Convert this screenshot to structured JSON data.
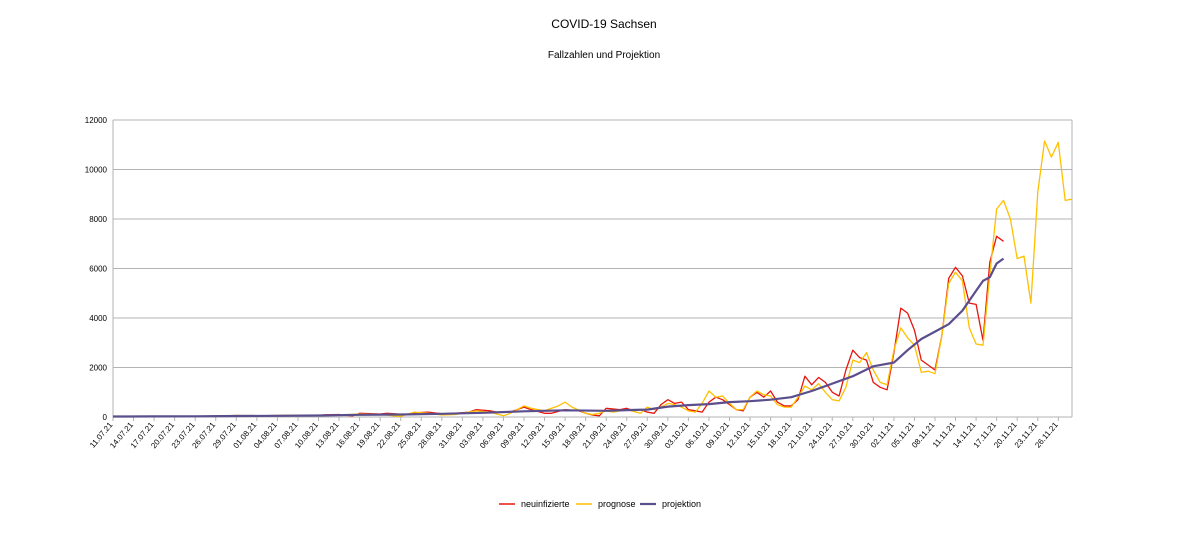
{
  "chart_data": {
    "type": "line",
    "title": "COVID-19 Sachsen",
    "subtitle": "Fallzahlen und Projektion",
    "xlabel": "",
    "ylabel": "",
    "ylim": [
      0,
      12000
    ],
    "yticks": [
      0,
      2000,
      4000,
      6000,
      8000,
      10000,
      12000
    ],
    "grid": true,
    "legend_position": "bottom",
    "x_start": "11.07.21",
    "x_end": "28.11.21",
    "xtick_labels": [
      "11.07.21",
      "14.07.21",
      "17.07.21",
      "20.07.21",
      "23.07.21",
      "26.07.21",
      "29.07.21",
      "01.08.21",
      "04.08.21",
      "07.08.21",
      "10.08.21",
      "13.08.21",
      "16.08.21",
      "19.08.21",
      "22.08.21",
      "25.08.21",
      "28.08.21",
      "31.08.21",
      "03.09.21",
      "06.09.21",
      "09.09.21",
      "12.09.21",
      "15.09.21",
      "18.09.21",
      "21.09.21",
      "24.09.21",
      "27.09.21",
      "30.09.21",
      "03.10.21",
      "06.10.21",
      "09.10.21",
      "12.10.21",
      "15.10.21",
      "18.10.21",
      "21.10.21",
      "24.10.21",
      "27.10.21",
      "30.10.21",
      "02.11.21",
      "05.11.21",
      "08.11.21",
      "11.11.21",
      "14.11.21",
      "17.11.21",
      "20.11.21",
      "23.11.21",
      "26.11.21"
    ],
    "series": [
      {
        "name": "neuinfizierte",
        "color": "#e8150d",
        "points": [
          [
            "11.07.21",
            20
          ],
          [
            "14.07.21",
            25
          ],
          [
            "17.07.21",
            30
          ],
          [
            "20.07.21",
            35
          ],
          [
            "23.07.21",
            30
          ],
          [
            "26.07.21",
            40
          ],
          [
            "29.07.21",
            60
          ],
          [
            "01.08.21",
            50
          ],
          [
            "04.08.21",
            60
          ],
          [
            "07.08.21",
            70
          ],
          [
            "10.08.21",
            60
          ],
          [
            "11.08.21",
            90
          ],
          [
            "13.08.21",
            100
          ],
          [
            "14.08.21",
            70
          ],
          [
            "15.08.21",
            50
          ],
          [
            "16.08.21",
            150
          ],
          [
            "18.08.21",
            130
          ],
          [
            "19.08.21",
            120
          ],
          [
            "20.08.21",
            150
          ],
          [
            "22.08.21",
            110
          ],
          [
            "23.08.21",
            90
          ],
          [
            "24.08.21",
            170
          ],
          [
            "26.08.21",
            200
          ],
          [
            "28.08.21",
            130
          ],
          [
            "30.08.21",
            150
          ],
          [
            "01.09.21",
            200
          ],
          [
            "02.09.21",
            300
          ],
          [
            "04.09.21",
            250
          ],
          [
            "05.09.21",
            200
          ],
          [
            "07.09.21",
            200
          ],
          [
            "08.09.21",
            300
          ],
          [
            "09.09.21",
            400
          ],
          [
            "10.09.21",
            300
          ],
          [
            "12.09.21",
            150
          ],
          [
            "13.09.21",
            150
          ],
          [
            "15.09.21",
            300
          ],
          [
            "17.09.21",
            250
          ],
          [
            "18.09.21",
            150
          ],
          [
            "19.09.21",
            80
          ],
          [
            "20.09.21",
            50
          ],
          [
            "21.09.21",
            350
          ],
          [
            "23.09.21",
            300
          ],
          [
            "24.09.21",
            350
          ],
          [
            "25.09.21",
            250
          ],
          [
            "26.09.21",
            300
          ],
          [
            "27.09.21",
            200
          ],
          [
            "28.09.21",
            150
          ],
          [
            "29.09.21",
            500
          ],
          [
            "30.09.21",
            700
          ],
          [
            "01.10.21",
            550
          ],
          [
            "02.10.21",
            600
          ],
          [
            "03.10.21",
            300
          ],
          [
            "04.10.21",
            250
          ],
          [
            "05.10.21",
            200
          ],
          [
            "06.10.21",
            600
          ],
          [
            "07.10.21",
            800
          ],
          [
            "08.10.21",
            700
          ],
          [
            "09.10.21",
            500
          ],
          [
            "10.10.21",
            300
          ],
          [
            "11.10.21",
            250
          ],
          [
            "12.10.21",
            800
          ],
          [
            "13.10.21",
            1000
          ],
          [
            "14.10.21",
            800
          ],
          [
            "15.10.21",
            1050
          ],
          [
            "16.10.21",
            600
          ],
          [
            "17.10.21",
            450
          ],
          [
            "18.10.21",
            450
          ],
          [
            "19.10.21",
            700
          ],
          [
            "20.10.21",
            1650
          ],
          [
            "21.10.21",
            1300
          ],
          [
            "22.10.21",
            1600
          ],
          [
            "23.10.21",
            1400
          ],
          [
            "24.10.21",
            1000
          ],
          [
            "25.10.21",
            850
          ],
          [
            "26.10.21",
            1900
          ],
          [
            "27.10.21",
            2700
          ],
          [
            "28.10.21",
            2400
          ],
          [
            "29.10.21",
            2300
          ],
          [
            "30.10.21",
            1400
          ],
          [
            "31.10.21",
            1200
          ],
          [
            "01.11.21",
            1100
          ],
          [
            "02.11.21",
            2600
          ],
          [
            "03.11.21",
            4400
          ],
          [
            "04.11.21",
            4200
          ],
          [
            "05.11.21",
            3500
          ],
          [
            "06.11.21",
            2300
          ],
          [
            "07.11.21",
            2100
          ],
          [
            "08.11.21",
            1900
          ],
          [
            "09.11.21",
            3300
          ],
          [
            "10.11.21",
            5600
          ],
          [
            "11.11.21",
            6050
          ],
          [
            "12.11.21",
            5700
          ],
          [
            "13.11.21",
            4600
          ],
          [
            "14.11.21",
            4550
          ],
          [
            "15.11.21",
            3100
          ],
          [
            "16.11.21",
            6250
          ],
          [
            "17.11.21",
            7300
          ],
          [
            "18.11.21",
            7100
          ]
        ]
      },
      {
        "name": "prognose",
        "color": "#ffc000",
        "points": [
          [
            "11.07.21",
            20
          ],
          [
            "14.07.21",
            25
          ],
          [
            "17.07.21",
            30
          ],
          [
            "20.07.21",
            35
          ],
          [
            "23.07.21",
            30
          ],
          [
            "26.07.21",
            40
          ],
          [
            "29.07.21",
            60
          ],
          [
            "01.08.21",
            50
          ],
          [
            "04.08.21",
            60
          ],
          [
            "07.08.21",
            70
          ],
          [
            "10.08.21",
            60
          ],
          [
            "13.08.21",
            80
          ],
          [
            "16.08.21",
            120
          ],
          [
            "19.08.21",
            110
          ],
          [
            "21.08.21",
            50
          ],
          [
            "22.08.21",
            30
          ],
          [
            "24.08.21",
            200
          ],
          [
            "26.08.21",
            150
          ],
          [
            "28.08.21",
            80
          ],
          [
            "30.08.21",
            100
          ],
          [
            "01.09.21",
            200
          ],
          [
            "02.09.21",
            250
          ],
          [
            "04.09.21",
            200
          ],
          [
            "06.09.21",
            50
          ],
          [
            "07.09.21",
            150
          ],
          [
            "08.09.21",
            300
          ],
          [
            "09.09.21",
            450
          ],
          [
            "10.09.21",
            350
          ],
          [
            "12.09.21",
            250
          ],
          [
            "14.09.21",
            450
          ],
          [
            "15.09.21",
            600
          ],
          [
            "16.09.21",
            400
          ],
          [
            "18.09.21",
            150
          ],
          [
            "19.09.21",
            100
          ],
          [
            "20.09.21",
            150
          ],
          [
            "21.09.21",
            250
          ],
          [
            "22.09.21",
            200
          ],
          [
            "24.09.21",
            300
          ],
          [
            "26.09.21",
            150
          ],
          [
            "27.09.21",
            400
          ],
          [
            "28.09.21",
            300
          ],
          [
            "29.09.21",
            400
          ],
          [
            "30.09.21",
            550
          ],
          [
            "01.10.21",
            500
          ],
          [
            "02.10.21",
            400
          ],
          [
            "03.10.21",
            250
          ],
          [
            "04.10.21",
            200
          ],
          [
            "05.10.21",
            550
          ],
          [
            "06.10.21",
            1050
          ],
          [
            "07.10.21",
            800
          ],
          [
            "08.10.21",
            850
          ],
          [
            "09.10.21",
            550
          ],
          [
            "10.10.21",
            300
          ],
          [
            "11.10.21",
            300
          ],
          [
            "12.10.21",
            800
          ],
          [
            "13.10.21",
            1050
          ],
          [
            "14.10.21",
            900
          ],
          [
            "15.10.21",
            850
          ],
          [
            "16.10.21",
            500
          ],
          [
            "17.10.21",
            400
          ],
          [
            "18.10.21",
            400
          ],
          [
            "19.10.21",
            800
          ],
          [
            "20.10.21",
            1250
          ],
          [
            "21.10.21",
            1100
          ],
          [
            "22.10.21",
            1350
          ],
          [
            "23.10.21",
            1000
          ],
          [
            "24.10.21",
            700
          ],
          [
            "25.10.21",
            650
          ],
          [
            "26.10.21",
            1200
          ],
          [
            "27.10.21",
            2300
          ],
          [
            "28.10.21",
            2200
          ],
          [
            "29.10.21",
            2600
          ],
          [
            "30.10.21",
            1900
          ],
          [
            "31.10.21",
            1400
          ],
          [
            "01.11.21",
            1300
          ],
          [
            "02.11.21",
            2700
          ],
          [
            "03.11.21",
            3600
          ],
          [
            "04.11.21",
            3200
          ],
          [
            "05.11.21",
            2900
          ],
          [
            "06.11.21",
            1800
          ],
          [
            "07.11.21",
            1850
          ],
          [
            "08.11.21",
            1750
          ],
          [
            "09.11.21",
            3300
          ],
          [
            "10.11.21",
            5400
          ],
          [
            "11.11.21",
            5850
          ],
          [
            "12.11.21",
            5500
          ],
          [
            "13.11.21",
            3600
          ],
          [
            "14.11.21",
            2950
          ],
          [
            "15.11.21",
            2900
          ],
          [
            "16.11.21",
            5750
          ],
          [
            "17.11.21",
            8400
          ],
          [
            "18.11.21",
            8750
          ],
          [
            "19.11.21",
            8000
          ],
          [
            "20.11.21",
            6400
          ],
          [
            "21.11.21",
            6500
          ],
          [
            "22.11.21",
            4600
          ],
          [
            "23.11.21",
            9100
          ],
          [
            "24.11.21",
            11150
          ],
          [
            "25.11.21",
            10500
          ],
          [
            "26.11.21",
            11100
          ],
          [
            "27.11.21",
            8750
          ],
          [
            "28.11.21",
            8800
          ]
        ]
      },
      {
        "name": "projektion",
        "color": "#5a4e8c",
        "points": [
          [
            "11.07.21",
            20
          ],
          [
            "17.07.21",
            25
          ],
          [
            "23.07.21",
            30
          ],
          [
            "29.07.21",
            40
          ],
          [
            "04.08.21",
            50
          ],
          [
            "10.08.21",
            60
          ],
          [
            "16.08.21",
            90
          ],
          [
            "22.08.21",
            100
          ],
          [
            "28.08.21",
            130
          ],
          [
            "03.09.21",
            170
          ],
          [
            "09.09.21",
            230
          ],
          [
            "15.09.21",
            270
          ],
          [
            "21.09.21",
            250
          ],
          [
            "24.09.21",
            280
          ],
          [
            "27.09.21",
            300
          ],
          [
            "30.09.21",
            420
          ],
          [
            "03.10.21",
            480
          ],
          [
            "06.10.21",
            520
          ],
          [
            "09.10.21",
            600
          ],
          [
            "12.10.21",
            640
          ],
          [
            "15.10.21",
            700
          ],
          [
            "18.10.21",
            800
          ],
          [
            "21.10.21",
            1050
          ],
          [
            "24.10.21",
            1350
          ],
          [
            "27.10.21",
            1650
          ],
          [
            "30.10.21",
            2050
          ],
          [
            "02.11.21",
            2200
          ],
          [
            "04.11.21",
            2700
          ],
          [
            "06.11.21",
            3150
          ],
          [
            "08.11.21",
            3450
          ],
          [
            "10.11.21",
            3750
          ],
          [
            "12.11.21",
            4300
          ],
          [
            "14.11.21",
            5100
          ],
          [
            "15.11.21",
            5500
          ],
          [
            "16.11.21",
            5650
          ],
          [
            "17.11.21",
            6200
          ],
          [
            "18.11.21",
            6400
          ]
        ]
      }
    ]
  }
}
